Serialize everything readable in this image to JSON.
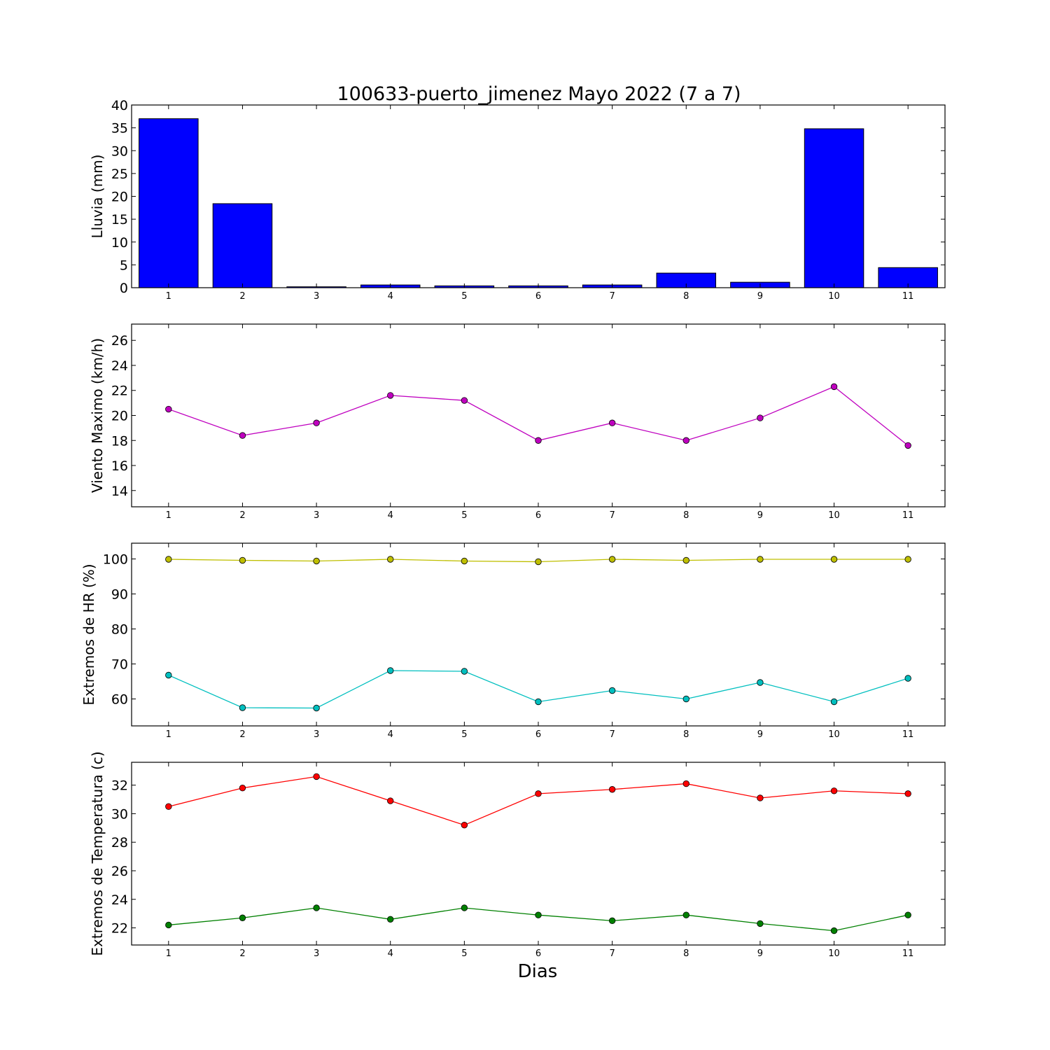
{
  "title": "100633-puerto_jimenez Mayo 2022  (7 a 7)",
  "xlabel": "Dias",
  "chart_data": [
    {
      "id": "lluvia",
      "type": "bar",
      "ylabel": "Lluvia (mm)",
      "ylim": [
        0,
        40
      ],
      "yticks": [
        0,
        5,
        10,
        15,
        20,
        25,
        30,
        35,
        40
      ],
      "xlim": [
        0.5,
        11.5
      ],
      "x": [
        1,
        2,
        3,
        4,
        5,
        6,
        7,
        8,
        9,
        10,
        11
      ],
      "series": [
        {
          "color": "#0000ff",
          "values": [
            37.0,
            18.4,
            0.2,
            0.6,
            0.4,
            0.4,
            0.6,
            3.2,
            1.2,
            34.8,
            4.4
          ]
        }
      ]
    },
    {
      "id": "viento",
      "type": "line",
      "ylabel": "Viento Maximo (km/h)",
      "ylim": [
        12.7,
        27.3
      ],
      "yticks": [
        14,
        16,
        18,
        20,
        22,
        24,
        26
      ],
      "xlim": [
        0.5,
        11.5
      ],
      "x": [
        1,
        2,
        3,
        4,
        5,
        6,
        7,
        8,
        9,
        10,
        11
      ],
      "series": [
        {
          "color": "#bf00bf",
          "values": [
            20.5,
            18.4,
            19.4,
            21.6,
            21.2,
            18.0,
            19.4,
            18.0,
            19.8,
            22.3,
            17.6
          ]
        }
      ]
    },
    {
      "id": "humedad",
      "type": "line",
      "ylabel": "Extremos de HR (%)",
      "ylim": [
        52.3,
        104.5
      ],
      "yticks": [
        60,
        70,
        80,
        90,
        100
      ],
      "xlim": [
        0.5,
        11.5
      ],
      "x": [
        1,
        2,
        3,
        4,
        5,
        6,
        7,
        8,
        9,
        10,
        11
      ],
      "series": [
        {
          "color": "#bfbf00",
          "values": [
            99.9,
            99.6,
            99.4,
            99.9,
            99.4,
            99.2,
            99.9,
            99.6,
            99.9,
            99.9,
            99.9
          ]
        },
        {
          "color": "#00bfbf",
          "values": [
            66.8,
            57.5,
            57.4,
            68.1,
            67.9,
            59.2,
            62.4,
            60.0,
            64.7,
            59.2,
            65.9
          ]
        }
      ]
    },
    {
      "id": "temperatura",
      "type": "line",
      "ylabel": "Extremos de Temperatura (c)",
      "ylim": [
        20.8,
        33.6
      ],
      "yticks": [
        22,
        24,
        26,
        28,
        30,
        32
      ],
      "xlim": [
        0.5,
        11.5
      ],
      "x": [
        1,
        2,
        3,
        4,
        5,
        6,
        7,
        8,
        9,
        10,
        11
      ],
      "series": [
        {
          "color": "#ff0000",
          "values": [
            30.5,
            31.8,
            32.6,
            30.9,
            29.2,
            31.4,
            31.7,
            32.1,
            31.1,
            31.6,
            31.4
          ]
        },
        {
          "color": "#008000",
          "values": [
            22.2,
            22.7,
            23.4,
            22.6,
            23.4,
            22.9,
            22.5,
            22.9,
            22.3,
            21.8,
            22.9
          ]
        }
      ]
    }
  ]
}
